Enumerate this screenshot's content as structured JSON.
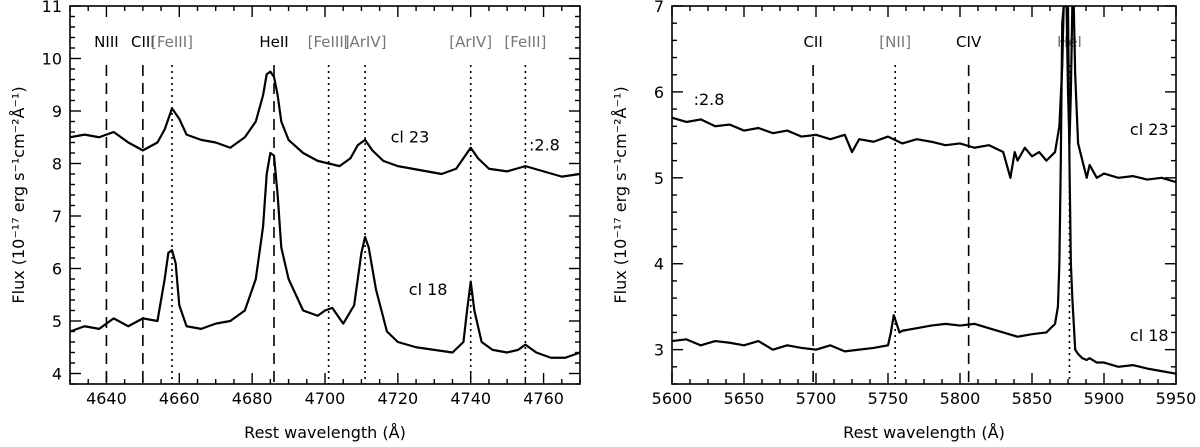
{
  "chart_data": [
    {
      "type": "line",
      "xlabel": "Rest wavelength (Å)",
      "ylabel": "Flux (10⁻¹⁷ erg s⁻¹cm⁻²Å⁻¹)",
      "xlim": [
        4630,
        4770
      ],
      "ylim": [
        3.8,
        11
      ],
      "xticks": [
        4640,
        4660,
        4680,
        4700,
        4720,
        4740,
        4760
      ],
      "yticks": [
        4,
        5,
        6,
        7,
        8,
        9,
        10,
        11
      ],
      "grid": false,
      "lines": [
        {
          "label": "NIII",
          "x": 4640,
          "style": "dashed",
          "color": "#000000"
        },
        {
          "label": "CIII",
          "x": 4650,
          "style": "dashed",
          "color": "#000000"
        },
        {
          "label": "[FeIII]",
          "x": 4658,
          "style": "dotted",
          "color": "#777777"
        },
        {
          "label": "HeII",
          "x": 4686,
          "style": "dashed",
          "color": "#000000"
        },
        {
          "label": "[FeIII]",
          "x": 4701,
          "style": "dotted",
          "color": "#777777"
        },
        {
          "label": "[ArIV]",
          "x": 4711,
          "style": "dotted",
          "color": "#777777"
        },
        {
          "label": "[ArIV]",
          "x": 4740,
          "style": "dotted",
          "color": "#777777"
        },
        {
          "label": "[FeIII]",
          "x": 4755,
          "style": "dotted",
          "color": "#777777"
        }
      ],
      "series": [
        {
          "name": "cl 23",
          "x": [
            4630,
            4634,
            4638,
            4642,
            4646,
            4650,
            4654,
            4656,
            4658,
            4660,
            4662,
            4666,
            4670,
            4674,
            4678,
            4681,
            4683,
            4684,
            4685,
            4686,
            4687,
            4688,
            4690,
            4694,
            4698,
            4701,
            4704,
            4707,
            4709,
            4711,
            4713,
            4716,
            4720,
            4724,
            4728,
            4732,
            4736,
            4738,
            4740,
            4742,
            4745,
            4750,
            4755,
            4760,
            4765,
            4770
          ],
          "y": [
            8.5,
            8.55,
            8.5,
            8.6,
            8.4,
            8.25,
            8.4,
            8.65,
            9.05,
            8.85,
            8.55,
            8.45,
            8.4,
            8.3,
            8.5,
            8.8,
            9.3,
            9.7,
            9.75,
            9.65,
            9.3,
            8.8,
            8.45,
            8.2,
            8.05,
            8.0,
            7.95,
            8.1,
            8.35,
            8.45,
            8.25,
            8.05,
            7.95,
            7.9,
            7.85,
            7.8,
            7.9,
            8.1,
            8.3,
            8.1,
            7.9,
            7.85,
            7.95,
            7.85,
            7.75,
            7.8
          ]
        },
        {
          "name": "cl 18",
          "x": [
            4630,
            4634,
            4638,
            4642,
            4646,
            4650,
            4654,
            4656,
            4657,
            4658,
            4659,
            4660,
            4662,
            4666,
            4670,
            4674,
            4678,
            4681,
            4683,
            4684,
            4685,
            4686,
            4687,
            4688,
            4690,
            4694,
            4698,
            4700,
            4702,
            4705,
            4708,
            4710,
            4711,
            4712,
            4714,
            4717,
            4720,
            4725,
            4730,
            4735,
            4738,
            4739,
            4740,
            4741,
            4743,
            4746,
            4750,
            4753,
            4755,
            4758,
            4762,
            4766,
            4770
          ],
          "y": [
            4.8,
            4.9,
            4.85,
            5.05,
            4.9,
            5.05,
            5.0,
            5.8,
            6.3,
            6.35,
            6.1,
            5.3,
            4.9,
            4.85,
            4.95,
            5.0,
            5.2,
            5.8,
            6.8,
            7.8,
            8.2,
            8.15,
            7.4,
            6.4,
            5.8,
            5.2,
            5.1,
            5.2,
            5.25,
            4.95,
            5.3,
            6.3,
            6.6,
            6.4,
            5.6,
            4.8,
            4.6,
            4.5,
            4.45,
            4.4,
            4.6,
            5.2,
            5.75,
            5.2,
            4.6,
            4.45,
            4.4,
            4.45,
            4.55,
            4.4,
            4.3,
            4.3,
            4.4
          ]
        }
      ],
      "annotations": [
        {
          "text": "cl 23",
          "x": 4718,
          "y": 8.4
        },
        {
          "text": "cl 18",
          "x": 4723,
          "y": 5.5
        },
        {
          "text": ":2.8",
          "x": 4756,
          "y": 8.25
        }
      ]
    },
    {
      "type": "line",
      "xlabel": "Rest wavelength (Å)",
      "ylabel": "Flux (10⁻¹⁷ erg s⁻¹cm⁻²Å⁻¹)",
      "xlim": [
        5600,
        5950
      ],
      "ylim": [
        2.6,
        7
      ],
      "xticks": [
        5600,
        5650,
        5700,
        5750,
        5800,
        5850,
        5900,
        5950
      ],
      "yticks": [
        3,
        4,
        5,
        6,
        7
      ],
      "grid": false,
      "lines": [
        {
          "label": "CII",
          "x": 5698,
          "style": "dashed",
          "color": "#000000"
        },
        {
          "label": "[NII]",
          "x": 5755,
          "style": "dotted",
          "color": "#777777"
        },
        {
          "label": "CIV",
          "x": 5806,
          "style": "dashed",
          "color": "#000000"
        },
        {
          "label": "HeI",
          "x": 5876,
          "style": "dotted",
          "color": "#777777"
        }
      ],
      "series": [
        {
          "name": "cl 23",
          "x": [
            5600,
            5610,
            5620,
            5630,
            5640,
            5650,
            5660,
            5670,
            5680,
            5690,
            5700,
            5710,
            5720,
            5725,
            5730,
            5740,
            5750,
            5760,
            5770,
            5780,
            5790,
            5800,
            5810,
            5820,
            5830,
            5835,
            5838,
            5840,
            5845,
            5850,
            5855,
            5860,
            5866,
            5869,
            5871,
            5872,
            5873,
            5874,
            5875,
            5876,
            5877,
            5878,
            5879,
            5880,
            5882,
            5885,
            5888,
            5890,
            5895,
            5900,
            5910,
            5920,
            5930,
            5940,
            5950
          ],
          "y": [
            5.7,
            5.65,
            5.68,
            5.6,
            5.62,
            5.55,
            5.58,
            5.52,
            5.55,
            5.48,
            5.5,
            5.45,
            5.5,
            5.3,
            5.45,
            5.42,
            5.48,
            5.4,
            5.45,
            5.42,
            5.38,
            5.4,
            5.35,
            5.38,
            5.3,
            5.0,
            5.3,
            5.2,
            5.35,
            5.25,
            5.3,
            5.2,
            5.3,
            5.6,
            6.3,
            7.0,
            7.0,
            7.0,
            6.0,
            5.4,
            6.0,
            7.0,
            7.0,
            6.2,
            5.4,
            5.2,
            5.0,
            5.15,
            5.0,
            5.05,
            5.0,
            5.02,
            4.98,
            5.0,
            4.95
          ]
        },
        {
          "name": "cl 18",
          "x": [
            5600,
            5610,
            5620,
            5630,
            5640,
            5650,
            5660,
            5670,
            5680,
            5690,
            5700,
            5710,
            5720,
            5730,
            5740,
            5750,
            5752,
            5754,
            5756,
            5758,
            5760,
            5770,
            5780,
            5790,
            5800,
            5810,
            5820,
            5830,
            5840,
            5850,
            5860,
            5866,
            5868,
            5869,
            5870,
            5871,
            5872,
            5873,
            5874,
            5875,
            5876,
            5877,
            5878,
            5879,
            5880,
            5882,
            5885,
            5888,
            5890,
            5895,
            5900,
            5910,
            5920,
            5930,
            5940,
            5950
          ],
          "y": [
            3.1,
            3.12,
            3.05,
            3.1,
            3.08,
            3.05,
            3.1,
            3.0,
            3.05,
            3.02,
            3.0,
            3.05,
            2.98,
            3.0,
            3.02,
            3.05,
            3.2,
            3.4,
            3.3,
            3.2,
            3.22,
            3.25,
            3.28,
            3.3,
            3.28,
            3.3,
            3.25,
            3.2,
            3.15,
            3.18,
            3.2,
            3.3,
            3.5,
            4.0,
            5.2,
            6.8,
            7.0,
            7.0,
            7.0,
            7.0,
            5.2,
            4.0,
            3.6,
            3.3,
            3.0,
            2.95,
            2.9,
            2.88,
            2.9,
            2.85,
            2.85,
            2.8,
            2.82,
            2.78,
            2.75,
            2.72
          ]
        }
      ],
      "annotations": [
        {
          "text": "cl 23",
          "x": 5918,
          "y": 5.5
        },
        {
          "text": "cl 18",
          "x": 5918,
          "y": 3.1
        },
        {
          "text": ":2.8",
          "x": 5615,
          "y": 5.85
        }
      ]
    }
  ]
}
